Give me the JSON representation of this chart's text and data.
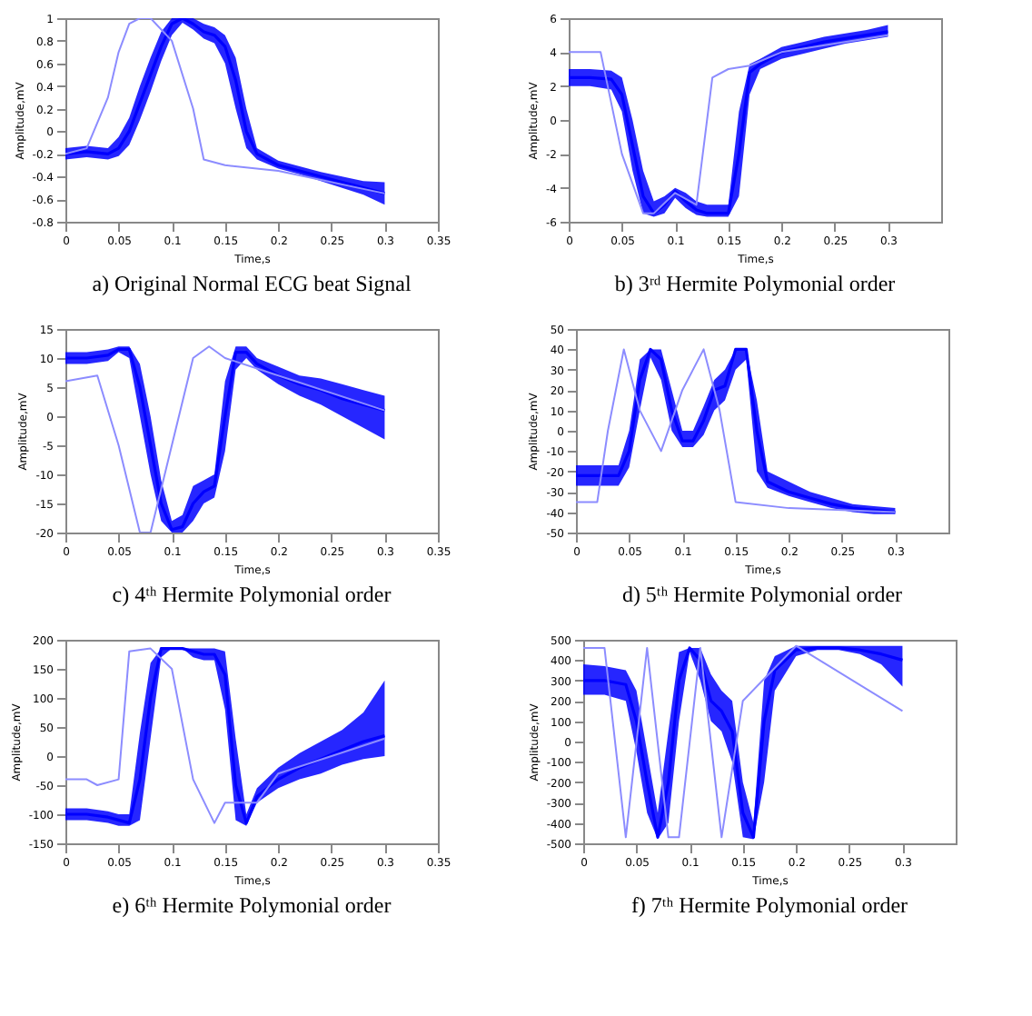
{
  "chart_data": [
    {
      "type": "line",
      "title": "a) Original Normal ECG beat Signal",
      "xlabel": "Time,s",
      "ylabel": "Amplitude,mV",
      "xlim": [
        0,
        0.35
      ],
      "xticks": [
        0,
        0.05,
        0.1,
        0.15,
        0.2,
        0.25,
        0.3,
        0.35
      ],
      "ylim": [
        -0.8,
        1
      ],
      "yticks": [
        -0.8,
        -0.6,
        -0.4,
        -0.2,
        0,
        0.2,
        0.4,
        0.6,
        0.8,
        1
      ],
      "x": [
        0,
        0.02,
        0.04,
        0.05,
        0.06,
        0.07,
        0.08,
        0.09,
        0.1,
        0.11,
        0.12,
        0.13,
        0.14,
        0.15,
        0.16,
        0.17,
        0.18,
        0.2,
        0.22,
        0.24,
        0.26,
        0.28,
        0.3
      ],
      "series": [
        {
          "color": "#0000ff",
          "values": [
            -0.2,
            -0.18,
            -0.2,
            -0.15,
            0.0,
            0.25,
            0.5,
            0.75,
            0.95,
            1.0,
            0.95,
            0.88,
            0.85,
            0.75,
            0.45,
            0.0,
            -0.2,
            -0.3,
            -0.35,
            -0.4,
            -0.45,
            -0.5,
            -0.55
          ],
          "lower": [
            -0.25,
            -0.23,
            -0.25,
            -0.22,
            -0.12,
            0.1,
            0.35,
            0.62,
            0.85,
            0.96,
            0.9,
            0.82,
            0.78,
            0.6,
            0.2,
            -0.15,
            -0.25,
            -0.33,
            -0.38,
            -0.44,
            -0.5,
            -0.56,
            -0.65
          ],
          "upper": [
            -0.15,
            -0.13,
            -0.15,
            -0.05,
            0.12,
            0.4,
            0.65,
            0.88,
            1.0,
            1.0,
            1.0,
            0.95,
            0.92,
            0.85,
            0.65,
            0.2,
            -0.15,
            -0.26,
            -0.31,
            -0.36,
            -0.4,
            -0.44,
            -0.45
          ]
        },
        {
          "color": "#8c8cff",
          "x": [
            0,
            0.02,
            0.04,
            0.05,
            0.06,
            0.07,
            0.08,
            0.1,
            0.12,
            0.13,
            0.15,
            0.2,
            0.3
          ],
          "values": [
            -0.2,
            -0.15,
            0.3,
            0.7,
            0.95,
            1.0,
            1.0,
            0.8,
            0.2,
            -0.25,
            -0.3,
            -0.35,
            -0.55
          ]
        }
      ]
    },
    {
      "type": "line",
      "title": "b) 3ʳᵈ Hermite Polymonial order",
      "xlabel": "Time,s",
      "ylabel": "Amplitude,mV",
      "xlim": [
        0,
        0.35
      ],
      "xticks": [
        0,
        0.05,
        0.1,
        0.15,
        0.2,
        0.25,
        0.3
      ],
      "ylim": [
        -6,
        6
      ],
      "yticks": [
        -6,
        -4,
        -2,
        0,
        2,
        4,
        6
      ],
      "x": [
        0,
        0.02,
        0.04,
        0.05,
        0.06,
        0.07,
        0.08,
        0.09,
        0.1,
        0.11,
        0.12,
        0.13,
        0.14,
        0.15,
        0.16,
        0.17,
        0.18,
        0.2,
        0.22,
        0.24,
        0.26,
        0.28,
        0.3
      ],
      "series": [
        {
          "color": "#0000ff",
          "values": [
            2.5,
            2.5,
            2.4,
            1.5,
            -1.5,
            -4.5,
            -5.5,
            -5.0,
            -4.2,
            -4.8,
            -5.3,
            -5.5,
            -5.5,
            -5.5,
            -2,
            2.8,
            3.3,
            4.0,
            4.3,
            4.6,
            4.8,
            5.0,
            5.2
          ],
          "lower": [
            2.0,
            2.0,
            1.8,
            0.5,
            -3.0,
            -5.5,
            -5.7,
            -5.5,
            -4.6,
            -5.2,
            -5.6,
            -5.7,
            -5.7,
            -5.7,
            -4.5,
            1.5,
            3.0,
            3.6,
            3.9,
            4.2,
            4.5,
            4.7,
            4.9
          ],
          "upper": [
            3.0,
            3.0,
            2.9,
            2.5,
            0.0,
            -3.0,
            -4.8,
            -4.5,
            -4.0,
            -4.3,
            -4.8,
            -5.0,
            -5.0,
            -5.0,
            0.5,
            3.3,
            3.6,
            4.3,
            4.6,
            4.9,
            5.1,
            5.3,
            5.6
          ]
        },
        {
          "color": "#8c8cff",
          "x": [
            0,
            0.03,
            0.05,
            0.07,
            0.08,
            0.1,
            0.12,
            0.135,
            0.15,
            0.17,
            0.2,
            0.3
          ],
          "values": [
            4.0,
            4.0,
            -2,
            -5.5,
            -5.5,
            -4.3,
            -5.0,
            2.5,
            3.0,
            3.2,
            4.0,
            5.0
          ]
        }
      ]
    },
    {
      "type": "line",
      "title": "c) 4ᵗʰ Hermite Polymonial order",
      "xlabel": "Time,s",
      "ylabel": "Amplitude,mV",
      "xlim": [
        0,
        0.35
      ],
      "xticks": [
        0,
        0.05,
        0.1,
        0.15,
        0.2,
        0.25,
        0.3,
        0.35
      ],
      "ylim": [
        -20,
        15
      ],
      "yticks": [
        -20,
        -15,
        -10,
        -5,
        0,
        5,
        10,
        15
      ],
      "x": [
        0,
        0.02,
        0.04,
        0.05,
        0.06,
        0.07,
        0.08,
        0.09,
        0.1,
        0.11,
        0.12,
        0.13,
        0.14,
        0.15,
        0.16,
        0.17,
        0.18,
        0.2,
        0.22,
        0.24,
        0.26,
        0.28,
        0.3
      ],
      "series": [
        {
          "color": "#0000ff",
          "values": [
            10,
            10,
            10.5,
            11.5,
            11.5,
            5,
            -5,
            -15,
            -19.5,
            -19,
            -15,
            -13,
            -12,
            0,
            11,
            11,
            9,
            7,
            5.5,
            4.5,
            3,
            2,
            1
          ],
          "lower": [
            9,
            9,
            9.5,
            11,
            10,
            0,
            -10,
            -18,
            -20,
            -20,
            -18,
            -15,
            -14,
            -6,
            8,
            10,
            8,
            5.5,
            3.5,
            2,
            0,
            -2,
            -4
          ],
          "upper": [
            11,
            11,
            11.5,
            12,
            12,
            9,
            0,
            -11,
            -18,
            -17,
            -12,
            -11,
            -10,
            6,
            12,
            12,
            10,
            8.5,
            7,
            6.5,
            5.5,
            4.5,
            3.5
          ]
        },
        {
          "color": "#8c8cff",
          "x": [
            0,
            0.03,
            0.05,
            0.07,
            0.08,
            0.1,
            0.12,
            0.135,
            0.15,
            0.2,
            0.3
          ],
          "values": [
            6,
            7,
            -5,
            -20,
            -20,
            -5,
            10,
            12,
            10,
            7,
            1
          ]
        }
      ]
    },
    {
      "type": "line",
      "title": "d) 5ᵗʰ Hermite Polymonial order",
      "xlabel": "Time,s",
      "ylabel": "Amplitude,mV",
      "xlim": [
        0,
        0.35
      ],
      "xticks": [
        0,
        0.05,
        0.1,
        0.15,
        0.2,
        0.25,
        0.3
      ],
      "ylim": [
        -50,
        50
      ],
      "yticks": [
        -50,
        -40,
        -30,
        -20,
        -10,
        0,
        10,
        20,
        30,
        40,
        50
      ],
      "x": [
        0,
        0.02,
        0.04,
        0.05,
        0.06,
        0.07,
        0.08,
        0.09,
        0.1,
        0.11,
        0.12,
        0.13,
        0.14,
        0.15,
        0.16,
        0.17,
        0.18,
        0.2,
        0.22,
        0.24,
        0.26,
        0.28,
        0.3
      ],
      "series": [
        {
          "color": "#0000ff",
          "values": [
            -22,
            -22,
            -22,
            -10,
            25,
            40,
            35,
            10,
            -5,
            -5,
            5,
            20,
            22,
            40,
            40,
            0,
            -25,
            -30,
            -33,
            -36,
            -38,
            -39,
            -40
          ],
          "lower": [
            -27,
            -27,
            -27,
            -18,
            10,
            36,
            25,
            0,
            -8,
            -8,
            -2,
            10,
            15,
            30,
            35,
            -20,
            -28,
            -32,
            -35,
            -38,
            -40,
            -41,
            -41
          ],
          "upper": [
            -17,
            -17,
            -17,
            0,
            35,
            40,
            40,
            20,
            0,
            0,
            12,
            25,
            30,
            40,
            40,
            15,
            -20,
            -25,
            -30,
            -33,
            -36,
            -37,
            -38
          ]
        },
        {
          "color": "#8c8cff",
          "x": [
            0,
            0.02,
            0.03,
            0.045,
            0.06,
            0.08,
            0.1,
            0.12,
            0.135,
            0.15,
            0.2,
            0.3
          ],
          "values": [
            -35,
            -35,
            0,
            40,
            10,
            -10,
            20,
            40,
            10,
            -35,
            -38,
            -40
          ]
        }
      ]
    },
    {
      "type": "line",
      "title": "e) 6ᵗʰ Hermite Polymonial order",
      "xlabel": "Time,s",
      "ylabel": "Amplitude,mV",
      "xlim": [
        0,
        0.35
      ],
      "xticks": [
        0,
        0.05,
        0.1,
        0.15,
        0.2,
        0.25,
        0.3,
        0.35
      ],
      "ylim": [
        -150,
        200
      ],
      "yticks": [
        -150,
        -100,
        -50,
        0,
        50,
        100,
        150,
        200
      ],
      "x": [
        0,
        0.02,
        0.04,
        0.05,
        0.06,
        0.07,
        0.08,
        0.09,
        0.1,
        0.11,
        0.12,
        0.13,
        0.14,
        0.15,
        0.16,
        0.17,
        0.18,
        0.2,
        0.22,
        0.24,
        0.26,
        0.28,
        0.3
      ],
      "series": [
        {
          "color": "#0000ff",
          "values": [
            -100,
            -100,
            -105,
            -110,
            -115,
            -40,
            100,
            185,
            185,
            185,
            180,
            175,
            175,
            140,
            -50,
            -115,
            -70,
            -40,
            -20,
            -5,
            10,
            25,
            35
          ],
          "lower": [
            -110,
            -110,
            -115,
            -120,
            -120,
            -110,
            30,
            170,
            185,
            185,
            170,
            165,
            165,
            80,
            -110,
            -120,
            -80,
            -55,
            -40,
            -30,
            -15,
            -5,
            0
          ],
          "upper": [
            -90,
            -90,
            -95,
            -100,
            -100,
            40,
            160,
            185,
            185,
            185,
            185,
            185,
            185,
            180,
            30,
            -100,
            -55,
            -20,
            5,
            25,
            45,
            75,
            130
          ]
        },
        {
          "color": "#8c8cff",
          "x": [
            0,
            0.02,
            0.03,
            0.05,
            0.06,
            0.08,
            0.1,
            0.12,
            0.14,
            0.15,
            0.16,
            0.18,
            0.2,
            0.3
          ],
          "values": [
            -40,
            -40,
            -50,
            -40,
            180,
            185,
            150,
            -40,
            -115,
            -80,
            -80,
            -80,
            -30,
            30
          ]
        }
      ]
    },
    {
      "type": "line",
      "title": "f) 7ᵗʰ Hermite Polymonial order",
      "xlabel": "Time,s",
      "ylabel": "Amplitude,mV",
      "xlim": [
        0,
        0.35
      ],
      "xticks": [
        0,
        0.05,
        0.1,
        0.15,
        0.2,
        0.25,
        0.3
      ],
      "ylim": [
        -500,
        500
      ],
      "yticks": [
        -500,
        -400,
        -300,
        -200,
        -100,
        0,
        100,
        200,
        300,
        400,
        500
      ],
      "x": [
        0,
        0.02,
        0.04,
        0.05,
        0.06,
        0.07,
        0.08,
        0.09,
        0.1,
        0.11,
        0.12,
        0.13,
        0.14,
        0.15,
        0.16,
        0.17,
        0.18,
        0.2,
        0.22,
        0.24,
        0.26,
        0.28,
        0.3
      ],
      "series": [
        {
          "color": "#0000ff",
          "values": [
            300,
            300,
            280,
            100,
            -200,
            -470,
            -200,
            300,
            460,
            400,
            200,
            150,
            50,
            -350,
            -470,
            100,
            350,
            450,
            460,
            460,
            450,
            430,
            400
          ],
          "lower": [
            230,
            230,
            200,
            -50,
            -350,
            -480,
            -400,
            100,
            440,
            300,
            100,
            50,
            -100,
            -470,
            -480,
            -200,
            250,
            420,
            450,
            450,
            430,
            380,
            270
          ],
          "upper": [
            380,
            370,
            350,
            250,
            -50,
            -350,
            50,
            440,
            460,
            460,
            330,
            250,
            200,
            -200,
            -400,
            300,
            420,
            470,
            470,
            470,
            470,
            470,
            470
          ]
        },
        {
          "color": "#8c8cff",
          "x": [
            0,
            0.02,
            0.04,
            0.06,
            0.08,
            0.09,
            0.11,
            0.13,
            0.15,
            0.2,
            0.3
          ],
          "values": [
            460,
            460,
            -470,
            460,
            -470,
            -470,
            460,
            -470,
            200,
            470,
            150
          ]
        }
      ]
    }
  ]
}
